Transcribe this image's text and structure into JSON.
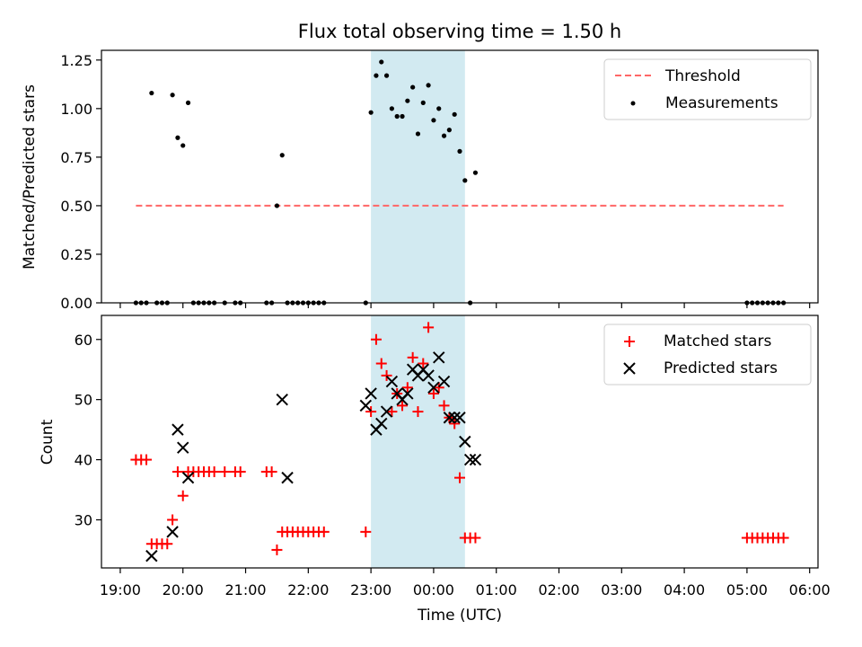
{
  "title": "Flux total observing time = 1.50 h",
  "colors": {
    "threshold": "#ff6666",
    "measurements": "#000000",
    "matched": "#ff0000",
    "predicted": "#000000",
    "highlight": "#add8e6"
  },
  "highlight_span": [
    "23:00",
    "00:30"
  ],
  "chart_data": [
    {
      "type": "scatter",
      "panel": "top",
      "ylabel": "Matched/Predicted stars",
      "xlabel": "",
      "xlim": [
        "19:00",
        "06:00"
      ],
      "ylim": [
        0,
        1.3
      ],
      "yticks": [
        "0.00",
        "0.25",
        "0.50",
        "0.75",
        "1.00",
        "1.25"
      ],
      "legend": "top-right",
      "series": [
        {
          "name": "Threshold",
          "kind": "dashed-line",
          "x": [
            "19:15",
            "05:35"
          ],
          "y": [
            0.5,
            0.5
          ]
        },
        {
          "name": "Measurements",
          "kind": "dots",
          "x": [
            "19:15",
            "19:20",
            "19:25",
            "19:30",
            "19:35",
            "19:40",
            "19:45",
            "19:50",
            "19:55",
            "20:00",
            "20:05",
            "20:10",
            "20:15",
            "20:20",
            "20:25",
            "20:30",
            "20:40",
            "20:50",
            "20:55",
            "21:20",
            "21:25",
            "21:30",
            "21:35",
            "21:40",
            "21:45",
            "21:50",
            "21:55",
            "22:00",
            "22:05",
            "22:10",
            "22:15",
            "22:55",
            "23:00",
            "23:05",
            "23:10",
            "23:15",
            "23:20",
            "23:25",
            "23:30",
            "23:35",
            "23:40",
            "23:45",
            "23:50",
            "23:55",
            "00:00",
            "00:05",
            "00:10",
            "00:15",
            "00:20",
            "00:25",
            "00:30",
            "00:35",
            "00:40",
            "05:00",
            "05:05",
            "05:10",
            "05:15",
            "05:20",
            "05:25",
            "05:30",
            "05:35"
          ],
          "y": [
            0,
            0,
            0,
            1.08,
            0,
            0,
            0,
            1.07,
            0.85,
            0.81,
            1.03,
            0,
            0,
            0,
            0,
            0,
            0,
            0,
            0,
            0,
            0,
            0.5,
            0.76,
            0,
            0,
            0,
            0,
            0,
            0,
            0,
            0,
            0,
            0.98,
            1.17,
            1.24,
            1.17,
            1.0,
            0.96,
            0.96,
            1.04,
            1.11,
            0.87,
            1.03,
            1.12,
            0.94,
            1.0,
            0.86,
            0.89,
            0.97,
            0.78,
            0.63,
            0,
            0.67,
            0,
            0,
            0,
            0,
            0,
            0,
            0,
            0
          ]
        }
      ]
    },
    {
      "type": "scatter",
      "panel": "bottom",
      "ylabel": "Count",
      "xlabel": "Time (UTC)",
      "xlim": [
        "19:00",
        "06:00"
      ],
      "ylim": [
        22,
        64
      ],
      "yticks": [
        "30",
        "40",
        "50",
        "60"
      ],
      "xticks": [
        "19:00",
        "20:00",
        "21:00",
        "22:00",
        "23:00",
        "00:00",
        "01:00",
        "02:00",
        "03:00",
        "04:00",
        "05:00",
        "06:00"
      ],
      "legend": "top-right",
      "series": [
        {
          "name": "Matched stars",
          "marker": "plus",
          "x": [
            "19:15",
            "19:20",
            "19:25",
            "19:30",
            "19:35",
            "19:40",
            "19:45",
            "19:50",
            "19:55",
            "20:00",
            "20:05",
            "20:10",
            "20:15",
            "20:20",
            "20:25",
            "20:30",
            "20:40",
            "20:50",
            "20:55",
            "21:20",
            "21:25",
            "21:30",
            "21:35",
            "21:40",
            "21:45",
            "21:50",
            "21:55",
            "22:00",
            "22:05",
            "22:10",
            "22:15",
            "22:55",
            "23:00",
            "23:05",
            "23:10",
            "23:15",
            "23:20",
            "23:25",
            "23:30",
            "23:35",
            "23:40",
            "23:45",
            "23:50",
            "23:55",
            "00:00",
            "00:05",
            "00:10",
            "00:15",
            "00:20",
            "00:25",
            "00:30",
            "00:35",
            "00:40",
            "05:00",
            "05:05",
            "05:10",
            "05:15",
            "05:20",
            "05:25",
            "05:30",
            "05:35"
          ],
          "y": [
            40,
            40,
            40,
            26,
            26,
            26,
            26,
            30,
            38,
            34,
            38,
            38,
            38,
            38,
            38,
            38,
            38,
            38,
            38,
            38,
            38,
            25,
            28,
            28,
            28,
            28,
            28,
            28,
            28,
            28,
            28,
            28,
            48,
            60,
            56,
            54,
            48,
            51,
            49,
            52,
            57,
            48,
            56,
            62,
            51,
            52,
            49,
            47,
            46,
            37,
            27,
            27,
            27,
            27,
            27,
            27,
            27,
            27,
            27,
            27,
            27
          ]
        },
        {
          "name": "Predicted stars",
          "marker": "x",
          "x": [
            "19:30",
            "19:50",
            "19:55",
            "20:00",
            "20:05",
            "21:35",
            "21:40",
            "22:55",
            "23:00",
            "23:05",
            "23:10",
            "23:15",
            "23:20",
            "23:25",
            "23:30",
            "23:35",
            "23:40",
            "23:45",
            "23:50",
            "23:55",
            "00:00",
            "00:05",
            "00:10",
            "00:15",
            "00:20",
            "00:25",
            "00:30",
            "00:35",
            "00:40"
          ],
          "y": [
            24,
            28,
            45,
            42,
            37,
            50,
            37,
            49,
            51,
            45,
            46,
            48,
            53,
            51,
            50,
            51,
            55,
            54,
            55,
            54,
            52,
            57,
            53,
            47,
            47,
            47,
            43,
            40,
            40
          ]
        }
      ]
    }
  ]
}
